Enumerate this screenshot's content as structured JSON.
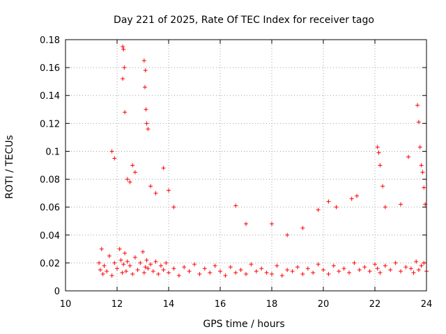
{
  "chart_data": {
    "type": "scatter",
    "title": "Day 221 of 2025, Rate Of TEC Index for receiver tago",
    "xlabel": "GPS time / hours",
    "ylabel": "ROTI / TECUs",
    "xlim": [
      10,
      24
    ],
    "ylim": [
      0,
      0.18
    ],
    "xticks": [
      10,
      12,
      14,
      16,
      18,
      20,
      22,
      24
    ],
    "xtick_labels": [
      "10",
      "12",
      "14",
      "16",
      "18",
      "20",
      "22",
      "24"
    ],
    "yticks": [
      0,
      0.02,
      0.04,
      0.06,
      0.08,
      0.1,
      0.12,
      0.14,
      0.16,
      0.18
    ],
    "ytick_labels": [
      "0",
      "0.02",
      "0.04",
      "0.06",
      "0.08",
      "0.1",
      "0.12",
      "0.14",
      "0.16",
      "0.18"
    ],
    "grid": true,
    "marker": "+",
    "color": "#ff0000",
    "series": [
      {
        "name": "ROTI",
        "x": [
          11.3,
          11.35,
          11.4,
          11.45,
          11.5,
          11.6,
          11.7,
          11.8,
          11.9,
          12.0,
          12.1,
          12.15,
          12.2,
          12.25,
          12.3,
          12.35,
          12.4,
          12.5,
          12.6,
          12.7,
          12.8,
          12.9,
          13.0,
          13.05,
          13.1,
          13.15,
          13.2,
          13.3,
          13.4,
          13.5,
          13.6,
          13.7,
          13.8,
          13.9,
          14.0,
          14.2,
          14.4,
          14.6,
          14.8,
          15.0,
          15.2,
          15.4,
          15.6,
          15.8,
          16.0,
          16.2,
          16.4,
          16.6,
          16.8,
          17.0,
          17.2,
          17.4,
          17.6,
          17.8,
          18.0,
          18.2,
          18.4,
          18.6,
          18.8,
          19.0,
          19.2,
          19.4,
          19.6,
          19.8,
          20.0,
          20.2,
          20.4,
          20.6,
          20.8,
          21.0,
          21.2,
          21.4,
          21.6,
          21.8,
          22.0,
          22.1,
          22.2,
          22.4,
          22.6,
          22.8,
          23.0,
          23.2,
          23.4,
          23.5,
          23.6,
          23.7,
          23.8,
          23.9,
          24.0,
          12.22,
          12.25,
          12.28,
          12.22,
          12.3,
          13.05,
          13.1,
          13.08,
          13.12,
          13.15,
          13.2,
          11.8,
          11.9,
          12.4,
          12.5,
          12.6,
          12.7,
          13.3,
          13.5,
          13.8,
          14.0,
          14.2,
          16.6,
          17.0,
          18.0,
          18.6,
          19.2,
          19.8,
          20.2,
          20.5,
          21.1,
          21.3,
          22.1,
          22.15,
          22.2,
          22.3,
          22.4,
          23.0,
          23.3,
          23.65,
          23.7,
          23.75,
          23.8,
          23.85,
          23.9,
          23.95
        ],
        "y": [
          0.02,
          0.015,
          0.03,
          0.012,
          0.018,
          0.014,
          0.025,
          0.011,
          0.02,
          0.016,
          0.03,
          0.022,
          0.013,
          0.019,
          0.027,
          0.014,
          0.021,
          0.018,
          0.012,
          0.024,
          0.015,
          0.02,
          0.028,
          0.013,
          0.017,
          0.022,
          0.016,
          0.019,
          0.014,
          0.021,
          0.012,
          0.018,
          0.015,
          0.02,
          0.013,
          0.016,
          0.011,
          0.017,
          0.014,
          0.019,
          0.012,
          0.016,
          0.013,
          0.018,
          0.014,
          0.011,
          0.017,
          0.013,
          0.015,
          0.012,
          0.019,
          0.014,
          0.016,
          0.013,
          0.012,
          0.018,
          0.011,
          0.015,
          0.014,
          0.017,
          0.012,
          0.016,
          0.013,
          0.019,
          0.015,
          0.012,
          0.018,
          0.014,
          0.016,
          0.013,
          0.02,
          0.015,
          0.017,
          0.014,
          0.019,
          0.016,
          0.013,
          0.018,
          0.015,
          0.02,
          0.014,
          0.017,
          0.016,
          0.013,
          0.021,
          0.015,
          0.018,
          0.02,
          0.014,
          0.175,
          0.173,
          0.16,
          0.152,
          0.128,
          0.165,
          0.158,
          0.146,
          0.13,
          0.12,
          0.116,
          0.1,
          0.095,
          0.08,
          0.078,
          0.09,
          0.085,
          0.075,
          0.07,
          0.088,
          0.072,
          0.06,
          0.061,
          0.048,
          0.048,
          0.04,
          0.045,
          0.058,
          0.064,
          0.06,
          0.066,
          0.068,
          0.103,
          0.099,
          0.09,
          0.075,
          0.06,
          0.062,
          0.096,
          0.133,
          0.121,
          0.103,
          0.09,
          0.085,
          0.074,
          0.062
        ]
      }
    ]
  }
}
